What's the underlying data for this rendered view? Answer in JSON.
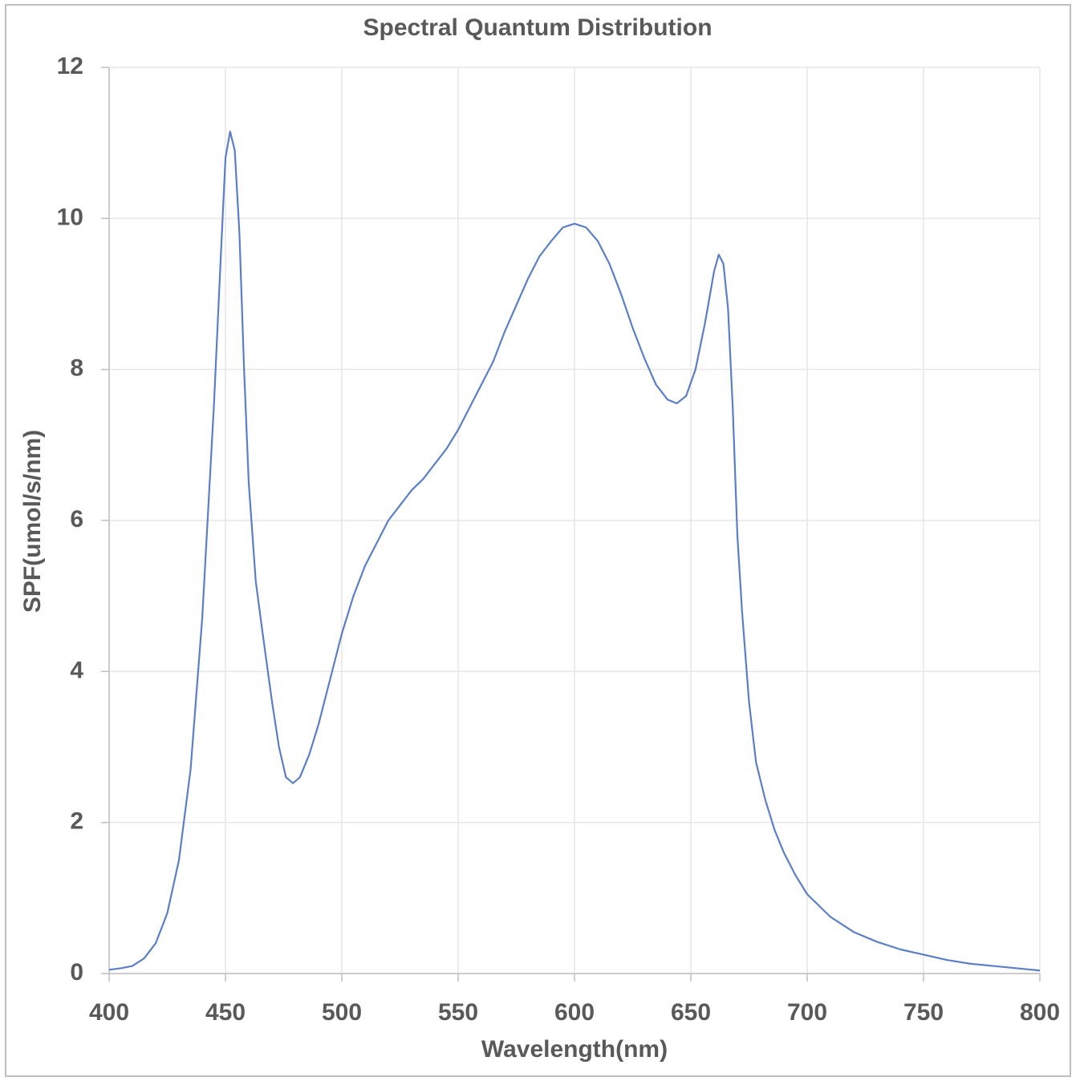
{
  "chart_data": {
    "type": "line",
    "title": "Spectral Quantum Distribution",
    "x_label": "Wavelength(nm)",
    "y_label": "SPF(umol/s/nm)",
    "x": [
      400,
      405,
      410,
      415,
      420,
      425,
      430,
      435,
      440,
      445,
      448,
      450,
      452,
      454,
      456,
      458,
      460,
      463,
      466,
      470,
      473,
      476,
      479,
      482,
      486,
      490,
      495,
      500,
      505,
      510,
      515,
      520,
      525,
      530,
      535,
      540,
      545,
      550,
      555,
      560,
      565,
      570,
      575,
      580,
      585,
      590,
      595,
      600,
      605,
      610,
      615,
      620,
      625,
      630,
      635,
      640,
      644,
      648,
      652,
      656,
      660,
      662,
      664,
      666,
      668,
      670,
      672,
      675,
      678,
      682,
      686,
      690,
      695,
      700,
      710,
      720,
      730,
      740,
      750,
      760,
      770,
      780,
      790,
      800
    ],
    "series": [
      {
        "name": "SPF",
        "color": "#5b7fc7",
        "values": [
          0.05,
          0.07,
          0.1,
          0.2,
          0.4,
          0.8,
          1.5,
          2.7,
          4.7,
          7.5,
          9.5,
          10.8,
          11.15,
          10.9,
          9.8,
          8.0,
          6.5,
          5.2,
          4.5,
          3.6,
          3.0,
          2.6,
          2.52,
          2.6,
          2.9,
          3.3,
          3.9,
          4.5,
          5.0,
          5.4,
          5.7,
          6.0,
          6.2,
          6.4,
          6.55,
          6.75,
          6.95,
          7.2,
          7.5,
          7.8,
          8.1,
          8.5,
          8.85,
          9.2,
          9.5,
          9.7,
          9.88,
          9.93,
          9.88,
          9.7,
          9.4,
          9.0,
          8.55,
          8.15,
          7.8,
          7.6,
          7.55,
          7.65,
          8.0,
          8.6,
          9.3,
          9.52,
          9.4,
          8.8,
          7.5,
          5.8,
          4.8,
          3.6,
          2.8,
          2.3,
          1.9,
          1.6,
          1.3,
          1.05,
          0.75,
          0.55,
          0.42,
          0.32,
          0.25,
          0.18,
          0.13,
          0.1,
          0.07,
          0.04
        ]
      }
    ],
    "xlim": [
      400,
      800
    ],
    "xticks": [
      400,
      450,
      500,
      550,
      600,
      650,
      700,
      750,
      800
    ],
    "ylim": [
      0,
      12
    ],
    "yticks": [
      0,
      2,
      4,
      6,
      8,
      10,
      12
    ],
    "grid": true
  }
}
